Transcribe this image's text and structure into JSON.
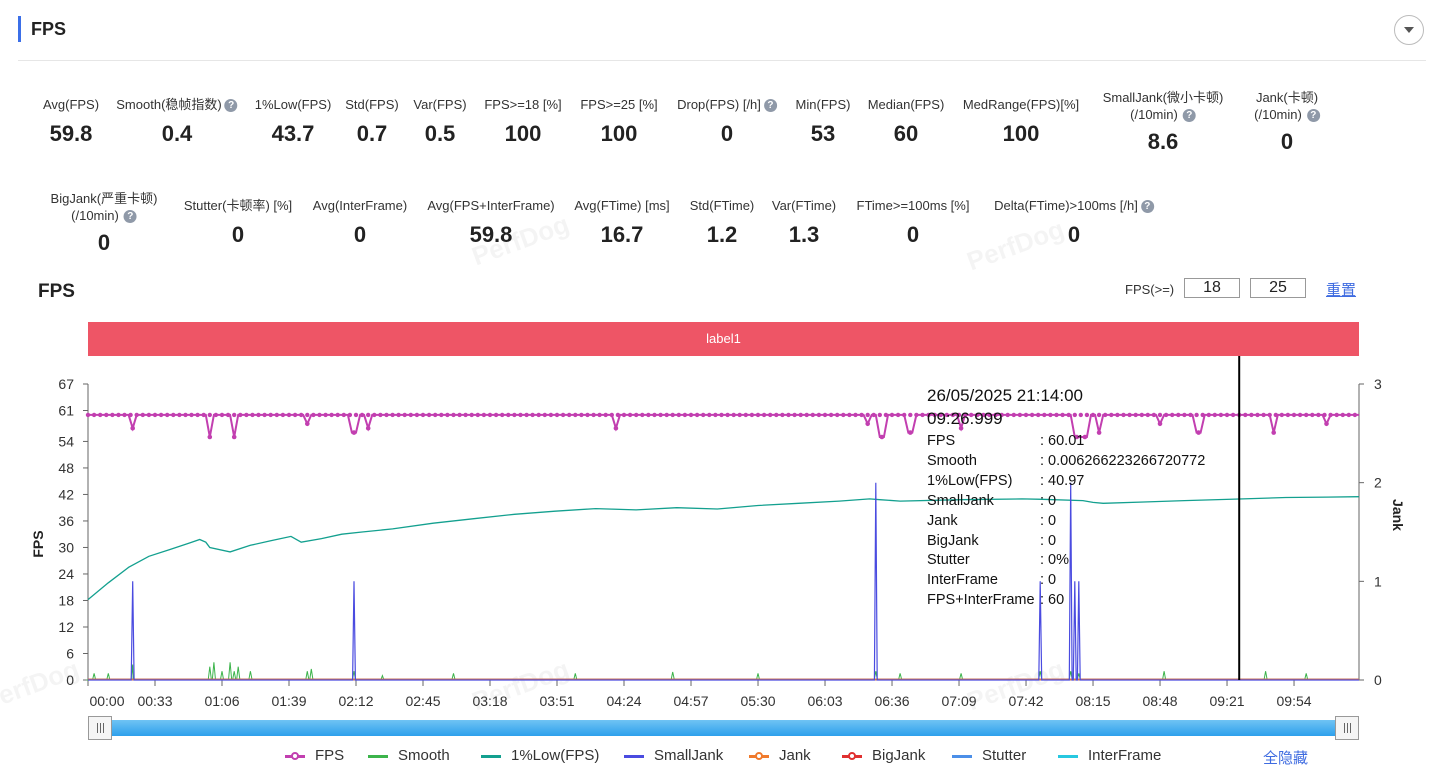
{
  "panel": {
    "title": "FPS"
  },
  "stats_row1": [
    {
      "label": "Avg(FPS)",
      "value": "59.8",
      "help": false
    },
    {
      "label": "Smooth(稳帧指数)",
      "value": "0.4",
      "help": true
    },
    {
      "label": "1%Low(FPS)",
      "value": "43.7",
      "help": false
    },
    {
      "label": "Std(FPS)",
      "value": "0.7",
      "help": false
    },
    {
      "label": "Var(FPS)",
      "value": "0.5",
      "help": false
    },
    {
      "label": "FPS>=18 [%]",
      "value": "100",
      "help": false
    },
    {
      "label": "FPS>=25 [%]",
      "value": "100",
      "help": false
    },
    {
      "label": "Drop(FPS) [/h]",
      "value": "0",
      "help": true
    },
    {
      "label": "Min(FPS)",
      "value": "53",
      "help": false
    },
    {
      "label": "Median(FPS)",
      "value": "60",
      "help": false
    },
    {
      "label": "MedRange(FPS)[%]",
      "value": "100",
      "help": false
    },
    {
      "label": "SmallJank(微小卡顿)",
      "label2": "(/10min)",
      "value": "8.6",
      "help": true
    },
    {
      "label": "Jank(卡顿)",
      "label2": "(/10min)",
      "value": "0",
      "help": true
    }
  ],
  "stats_row2": [
    {
      "label": "BigJank(严重卡顿)",
      "label2": "(/10min)",
      "value": "0",
      "help": true
    },
    {
      "label": "Stutter(卡顿率) [%]",
      "value": "0",
      "help": false
    },
    {
      "label": "Avg(InterFrame)",
      "value": "0",
      "help": false
    },
    {
      "label": "Avg(FPS+InterFrame)",
      "value": "59.8",
      "help": false
    },
    {
      "label": "Avg(FTime) [ms]",
      "value": "16.7",
      "help": false
    },
    {
      "label": "Std(FTime)",
      "value": "1.2",
      "help": false
    },
    {
      "label": "Var(FTime)",
      "value": "1.3",
      "help": false
    },
    {
      "label": "FTime>=100ms [%]",
      "value": "0",
      "help": false
    },
    {
      "label": "Delta(FTime)>100ms [/h]",
      "value": "0",
      "help": true
    }
  ],
  "chart_header": {
    "title": "FPS",
    "threshold_label": "FPS(>=)",
    "threshold_1": "18",
    "threshold_2": "25",
    "reset_label": "重置"
  },
  "label_band": {
    "text": "label1",
    "color": "#ee5566"
  },
  "watermark": "PerfDog",
  "tooltip": {
    "datetime": "26/05/2025 21:14:00",
    "time": "09:26.999",
    "rows": [
      {
        "key": "FPS",
        "value": ": 60.01"
      },
      {
        "key": "Smooth",
        "value": ": 0.006266223266720772"
      },
      {
        "key": "1%Low(FPS)",
        "value": ": 40.97"
      },
      {
        "key": "SmallJank",
        "value": ": 0"
      },
      {
        "key": "Jank",
        "value": ": 0"
      },
      {
        "key": "BigJank",
        "value": ": 0"
      },
      {
        "key": "Stutter",
        "value": ": 0%"
      },
      {
        "key": "InterFrame",
        "value": ": 0"
      },
      {
        "key": "FPS+InterFrame",
        "value": ": 60"
      }
    ]
  },
  "legend": {
    "items": [
      {
        "name": "FPS",
        "color": "#c23fb0",
        "dot": true
      },
      {
        "name": "Smooth",
        "color": "#3cb44b",
        "dot": false
      },
      {
        "name": "1%Low(FPS)",
        "color": "#13a08f",
        "dot": false
      },
      {
        "name": "SmallJank",
        "color": "#4a4be0",
        "dot": false
      },
      {
        "name": "Jank",
        "color": "#f07a2c",
        "dot": true
      },
      {
        "name": "BigJank",
        "color": "#e03030",
        "dot": true
      },
      {
        "name": "Stutter",
        "color": "#4c8fe8",
        "dot": false
      },
      {
        "name": "InterFrame",
        "color": "#27c8e0",
        "dot": false
      }
    ],
    "hide_all": "全隐藏"
  },
  "chart_data": {
    "type": "line",
    "x_unit": "mm:ss",
    "x_range_seconds": [
      0,
      626
    ],
    "x_tick_labels": [
      "00:00",
      "00:33",
      "01:06",
      "01:39",
      "02:12",
      "02:45",
      "03:18",
      "03:51",
      "04:24",
      "04:57",
      "05:30",
      "06:03",
      "06:36",
      "07:09",
      "07:42",
      "08:15",
      "08:48",
      "09:21",
      "09:54"
    ],
    "y_left": {
      "label": "FPS",
      "range": [
        0,
        67
      ],
      "ticks": [
        0,
        6,
        12,
        18,
        24,
        30,
        36,
        42,
        48,
        54,
        61,
        67
      ]
    },
    "y_right": {
      "label": "Jank",
      "range": [
        0,
        3
      ],
      "ticks": [
        0,
        1,
        2,
        3
      ]
    },
    "cursor_time_seconds": 567,
    "grid": false,
    "legend_position": "bottom",
    "series": [
      {
        "name": "FPS",
        "axis": "left",
        "baseline": 60,
        "dips": [
          [
            22,
            57
          ],
          [
            60,
            55
          ],
          [
            72,
            55
          ],
          [
            108,
            58
          ],
          [
            131,
            56
          ],
          [
            138,
            57
          ],
          [
            260,
            57
          ],
          [
            384,
            58
          ],
          [
            391,
            55
          ],
          [
            405,
            56
          ],
          [
            430,
            57
          ],
          [
            487,
            55
          ],
          [
            491,
            55
          ],
          [
            498,
            56
          ],
          [
            528,
            58
          ],
          [
            547,
            56
          ],
          [
            584,
            56
          ],
          [
            610,
            58
          ]
        ]
      },
      {
        "name": "1%Low(FPS)",
        "axis": "left",
        "points": [
          [
            0,
            18.2
          ],
          [
            10,
            22
          ],
          [
            20,
            25.5
          ],
          [
            30,
            28
          ],
          [
            40,
            29.5
          ],
          [
            50,
            31
          ],
          [
            55,
            31.8
          ],
          [
            58,
            31.2
          ],
          [
            60,
            30
          ],
          [
            70,
            29
          ],
          [
            80,
            30.5
          ],
          [
            90,
            31.5
          ],
          [
            100,
            32.5
          ],
          [
            105,
            31.2
          ],
          [
            115,
            32
          ],
          [
            125,
            33
          ],
          [
            135,
            33.5
          ],
          [
            150,
            34.2
          ],
          [
            170,
            35.5
          ],
          [
            190,
            36.5
          ],
          [
            210,
            37.5
          ],
          [
            230,
            38.2
          ],
          [
            250,
            38.8
          ],
          [
            270,
            38.5
          ],
          [
            290,
            39
          ],
          [
            310,
            38.7
          ],
          [
            330,
            39.5
          ],
          [
            350,
            40
          ],
          [
            370,
            40.5
          ],
          [
            385,
            41
          ],
          [
            390,
            40.8
          ],
          [
            400,
            40.5
          ],
          [
            430,
            40.8
          ],
          [
            460,
            41
          ],
          [
            470,
            40.9
          ],
          [
            490,
            40.6
          ],
          [
            495,
            40.2
          ],
          [
            500,
            40
          ],
          [
            520,
            40.3
          ],
          [
            540,
            40.6
          ],
          [
            567,
            40.97
          ],
          [
            590,
            41.3
          ],
          [
            610,
            41.4
          ],
          [
            626,
            41.5
          ]
        ]
      },
      {
        "name": "SmallJank",
        "axis": "right",
        "spikes": [
          [
            22,
            1
          ],
          [
            131,
            1
          ],
          [
            388,
            2
          ],
          [
            469,
            1
          ],
          [
            484,
            2
          ],
          [
            486,
            1
          ],
          [
            488,
            1
          ]
        ]
      },
      {
        "name": "Smooth",
        "axis": "left",
        "points": [
          [
            0,
            0
          ],
          [
            3,
            1.5
          ],
          [
            6,
            0
          ],
          [
            10,
            1.5
          ],
          [
            13,
            0
          ],
          [
            22,
            3.5
          ],
          [
            23,
            0
          ],
          [
            60,
            3
          ],
          [
            62,
            4
          ],
          [
            66,
            2
          ],
          [
            70,
            4
          ],
          [
            72,
            2
          ],
          [
            74,
            3
          ],
          [
            80,
            2
          ],
          [
            108,
            2
          ],
          [
            110,
            2.5
          ],
          [
            112,
            0
          ],
          [
            131,
            2
          ],
          [
            145,
            1
          ],
          [
            180,
            1.5
          ],
          [
            240,
            1.5
          ],
          [
            288,
            1.8
          ],
          [
            330,
            1.5
          ],
          [
            388,
            2
          ],
          [
            400,
            1.5
          ],
          [
            430,
            1.5
          ],
          [
            469,
            2
          ],
          [
            484,
            2
          ],
          [
            488,
            1.5
          ],
          [
            530,
            2
          ],
          [
            580,
            2
          ],
          [
            600,
            1.5
          ]
        ]
      },
      {
        "name": "Jank",
        "axis": "right",
        "constant": 0
      },
      {
        "name": "BigJank",
        "axis": "right",
        "constant": 0
      },
      {
        "name": "Stutter",
        "axis": "right",
        "constant": 0
      },
      {
        "name": "InterFrame",
        "axis": "right",
        "constant": 0
      }
    ]
  }
}
